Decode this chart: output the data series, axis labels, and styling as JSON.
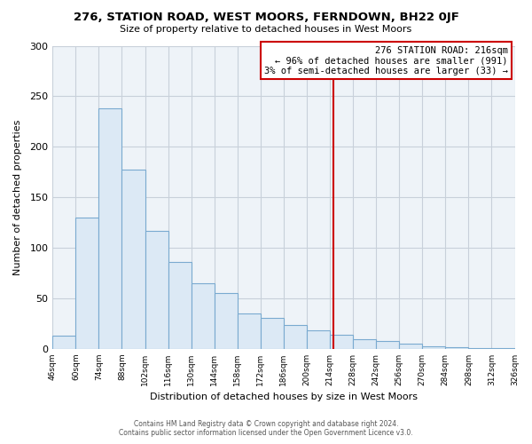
{
  "title": "276, STATION ROAD, WEST MOORS, FERNDOWN, BH22 0JF",
  "subtitle": "Size of property relative to detached houses in West Moors",
  "xlabel": "Distribution of detached houses by size in West Moors",
  "ylabel": "Number of detached properties",
  "bar_color": "#dce9f5",
  "bar_edge_color": "#7aaad0",
  "bins": [
    46,
    60,
    74,
    88,
    102,
    116,
    130,
    144,
    158,
    172,
    186,
    200,
    214,
    228,
    242,
    256,
    270,
    284,
    298,
    312,
    326
  ],
  "counts": [
    13,
    130,
    238,
    177,
    117,
    86,
    65,
    55,
    35,
    31,
    24,
    18,
    14,
    10,
    8,
    5,
    3,
    2,
    1,
    1
  ],
  "property_size": 216,
  "vline_color": "#cc0000",
  "annotation_title": "276 STATION ROAD: 216sqm",
  "annotation_line1": "← 96% of detached houses are smaller (991)",
  "annotation_line2": "3% of semi-detached houses are larger (33) →",
  "annotation_box_color": "#ffffff",
  "annotation_box_edge": "#cc0000",
  "ylim": [
    0,
    300
  ],
  "yticks": [
    0,
    50,
    100,
    150,
    200,
    250,
    300
  ],
  "footer1": "Contains HM Land Registry data © Crown copyright and database right 2024.",
  "footer2": "Contains public sector information licensed under the Open Government Licence v3.0.",
  "bg_color": "#ffffff",
  "plot_bg_color": "#eef3f8",
  "grid_color": "#c8d0da"
}
